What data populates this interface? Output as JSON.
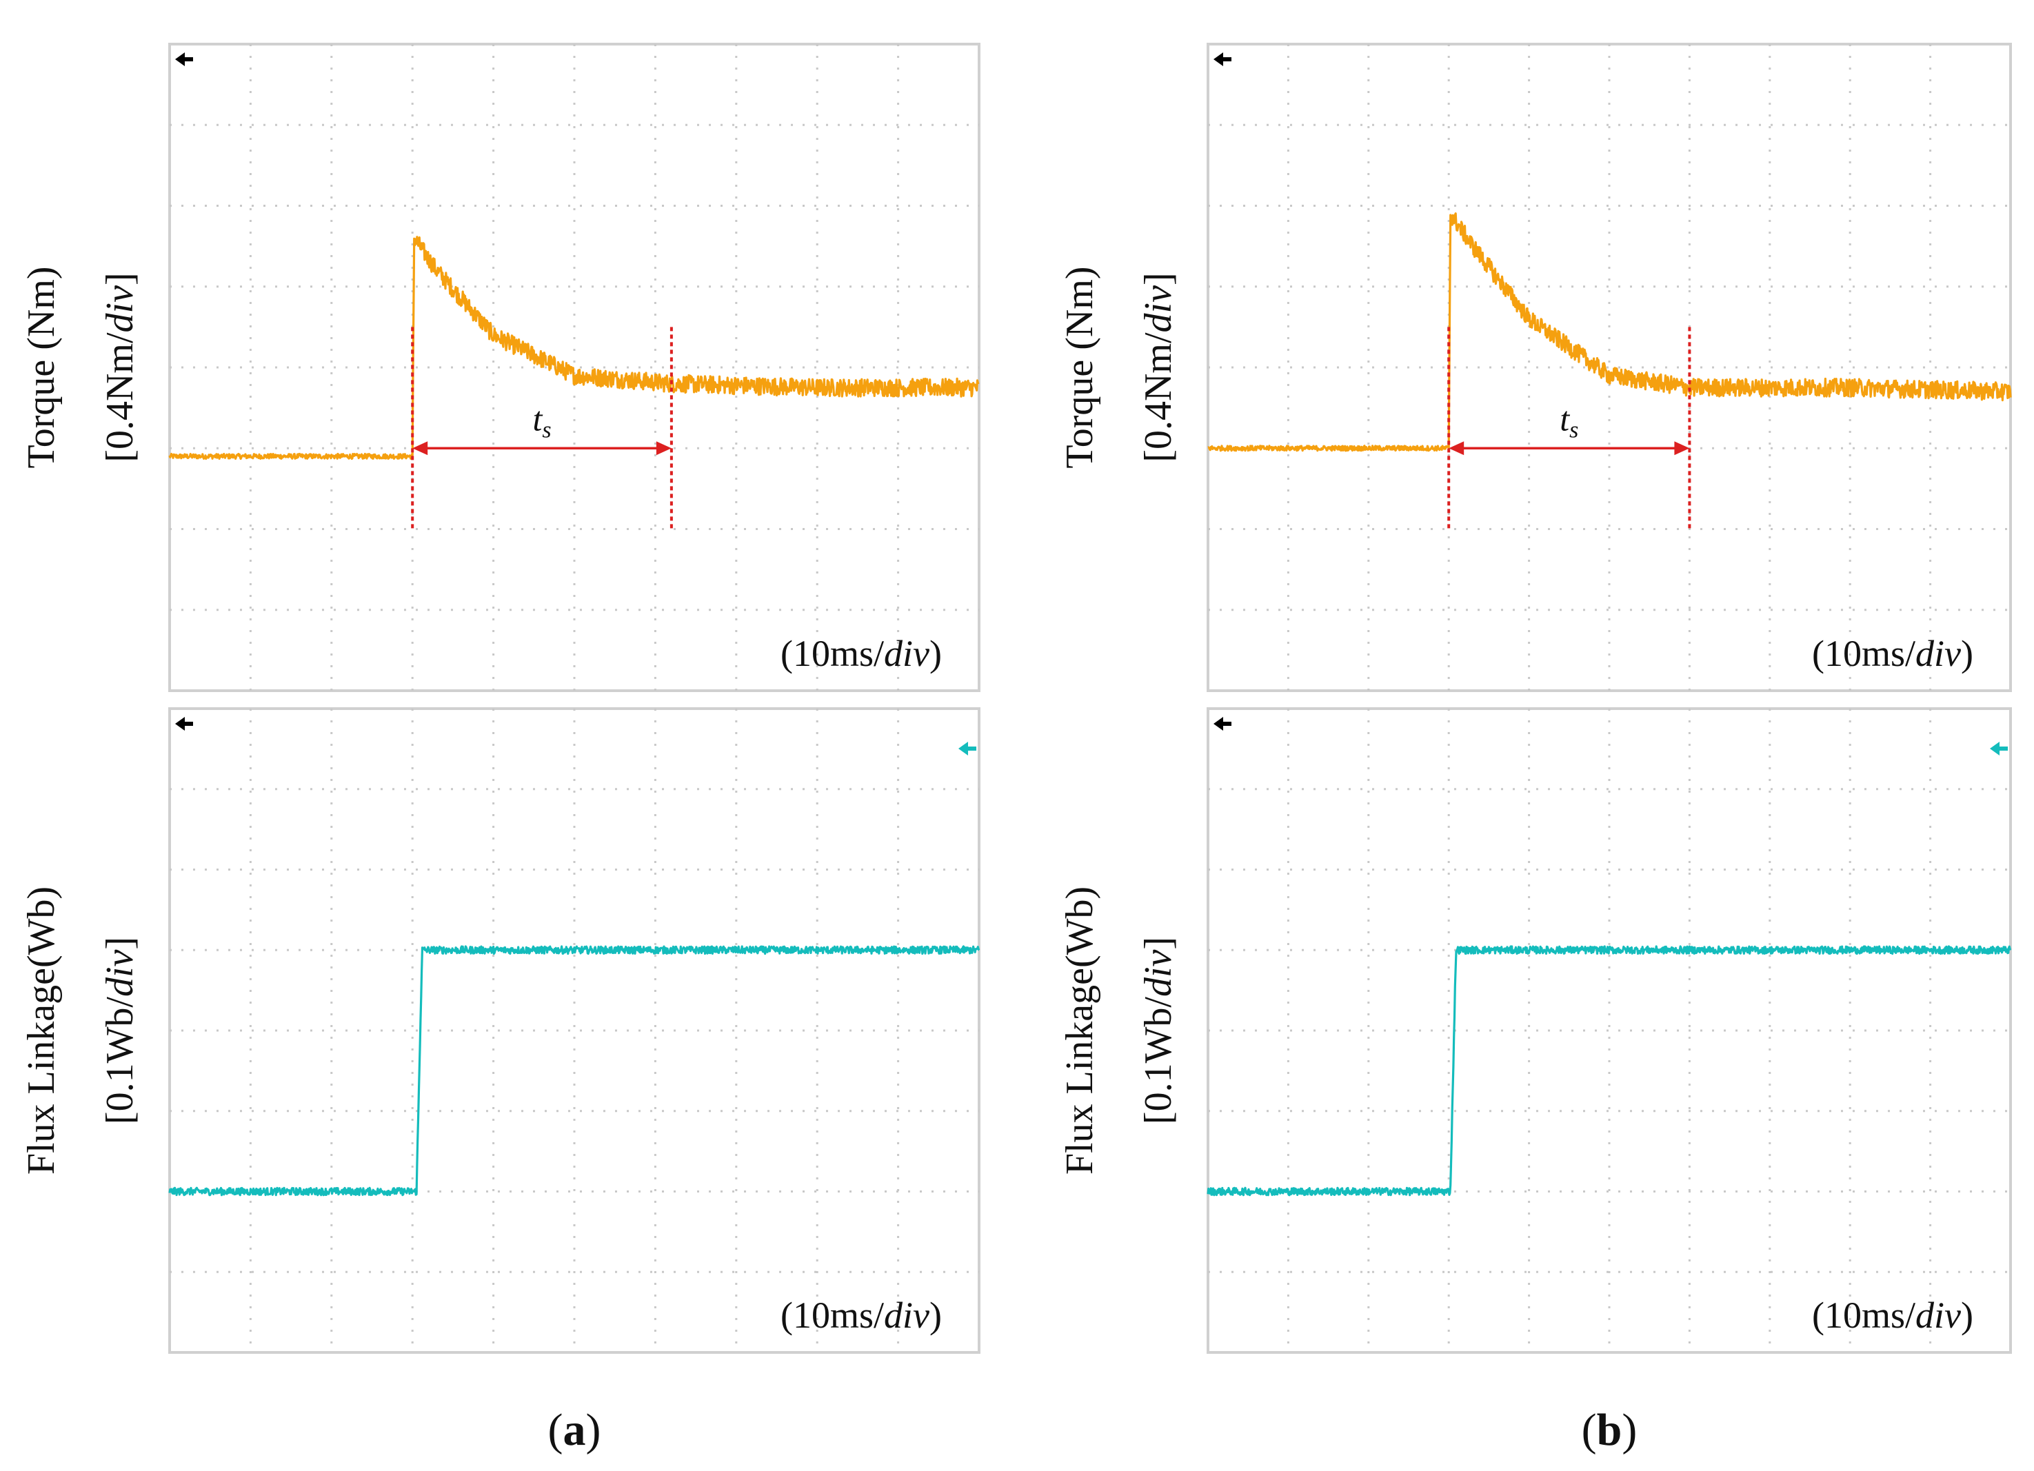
{
  "colors": {
    "torque": "#f5a00f",
    "flux": "#14bcbc",
    "marker": "#dc2020",
    "grid": "#c8c8c8",
    "frame": "#d0d0d0",
    "text": "#111111"
  },
  "panels": [
    {
      "id": "a",
      "caption_letter": "a",
      "torque": {
        "ylabel_line1": "Torque (Nm)",
        "ylabel_line2_prefix": "[0.4Nm/",
        "ylabel_line2_italic": "div",
        "ylabel_line2_suffix": "]",
        "time_prefix": "(10ms/",
        "time_italic": "div",
        "time_suffix": ")",
        "ts_main": "t",
        "ts_sub": "s"
      },
      "flux": {
        "ylabel_line1": "Flux Linkage(Wb)",
        "ylabel_line2_prefix": "[0.1Wb/",
        "ylabel_line2_italic": "div",
        "ylabel_line2_suffix": "]",
        "time_prefix": "(10ms/",
        "time_italic": "div",
        "time_suffix": ")"
      }
    },
    {
      "id": "b",
      "caption_letter": "b",
      "torque": {
        "ylabel_line1": "Torque (Nm)",
        "ylabel_line2_prefix": "[0.4Nm/",
        "ylabel_line2_italic": "div",
        "ylabel_line2_suffix": "]",
        "time_prefix": "(10ms/",
        "time_italic": "div",
        "time_suffix": ")",
        "ts_main": "t",
        "ts_sub": "s"
      },
      "flux": {
        "ylabel_line1": "Flux Linkage(Wb)",
        "ylabel_line2_prefix": "[0.1Wb/",
        "ylabel_line2_italic": "div",
        "ylabel_line2_suffix": "]",
        "time_prefix": "(10ms/",
        "time_italic": "div",
        "time_suffix": ")"
      }
    }
  ],
  "chart_data": [
    {
      "type": "line",
      "panel": "a",
      "title": "",
      "xlabel": "(10ms/div)",
      "ylabel": "Torque (Nm) [0.4Nm/div]",
      "x_unit": "div",
      "y_unit": "div",
      "xlim": [
        0,
        10
      ],
      "ylim": [
        0,
        8
      ],
      "grid": true,
      "series": [
        {
          "x": [
            0,
            3.0,
            3.02,
            3.3,
            4.0,
            5.0,
            6.2,
            8.0,
            10.0
          ],
          "y": [
            2.9,
            2.9,
            5.6,
            5.2,
            4.4,
            3.9,
            3.8,
            3.75,
            3.75
          ]
        }
      ],
      "annotations": {
        "ts_start_x": 3.0,
        "ts_end_x": 6.2,
        "ts_y": 3.0,
        "label": "ts"
      }
    },
    {
      "type": "line",
      "panel": "a",
      "title": "",
      "xlabel": "(10ms/div)",
      "ylabel": "Flux Linkage(Wb) [0.1Wb/div]",
      "x_unit": "div",
      "y_unit": "div",
      "xlim": [
        0,
        10
      ],
      "ylim": [
        0,
        8
      ],
      "grid": true,
      "series": [
        {
          "x": [
            0,
            3.05,
            3.12,
            10.0
          ],
          "y": [
            2.0,
            2.0,
            5.0,
            5.0
          ]
        }
      ]
    },
    {
      "type": "line",
      "panel": "b",
      "title": "",
      "xlabel": "(10ms/div)",
      "ylabel": "Torque (Nm) [0.4Nm/div]",
      "x_unit": "div",
      "y_unit": "div",
      "xlim": [
        0,
        10
      ],
      "ylim": [
        0,
        8
      ],
      "grid": true,
      "series": [
        {
          "x": [
            0,
            3.0,
            3.02,
            3.3,
            4.0,
            5.0,
            6.0,
            8.0,
            10.0
          ],
          "y": [
            3.0,
            3.0,
            5.9,
            5.5,
            4.6,
            3.9,
            3.75,
            3.75,
            3.7
          ]
        }
      ],
      "annotations": {
        "ts_start_x": 3.0,
        "ts_end_x": 6.0,
        "ts_y": 3.0,
        "label": "ts"
      }
    },
    {
      "type": "line",
      "panel": "b",
      "title": "",
      "xlabel": "(10ms/div)",
      "ylabel": "Flux Linkage(Wb) [0.1Wb/div]",
      "x_unit": "div",
      "y_unit": "div",
      "xlim": [
        0,
        10
      ],
      "ylim": [
        0,
        8
      ],
      "grid": true,
      "series": [
        {
          "x": [
            0,
            3.02,
            3.09,
            10.0
          ],
          "y": [
            2.0,
            2.0,
            5.0,
            5.0
          ]
        }
      ]
    }
  ]
}
